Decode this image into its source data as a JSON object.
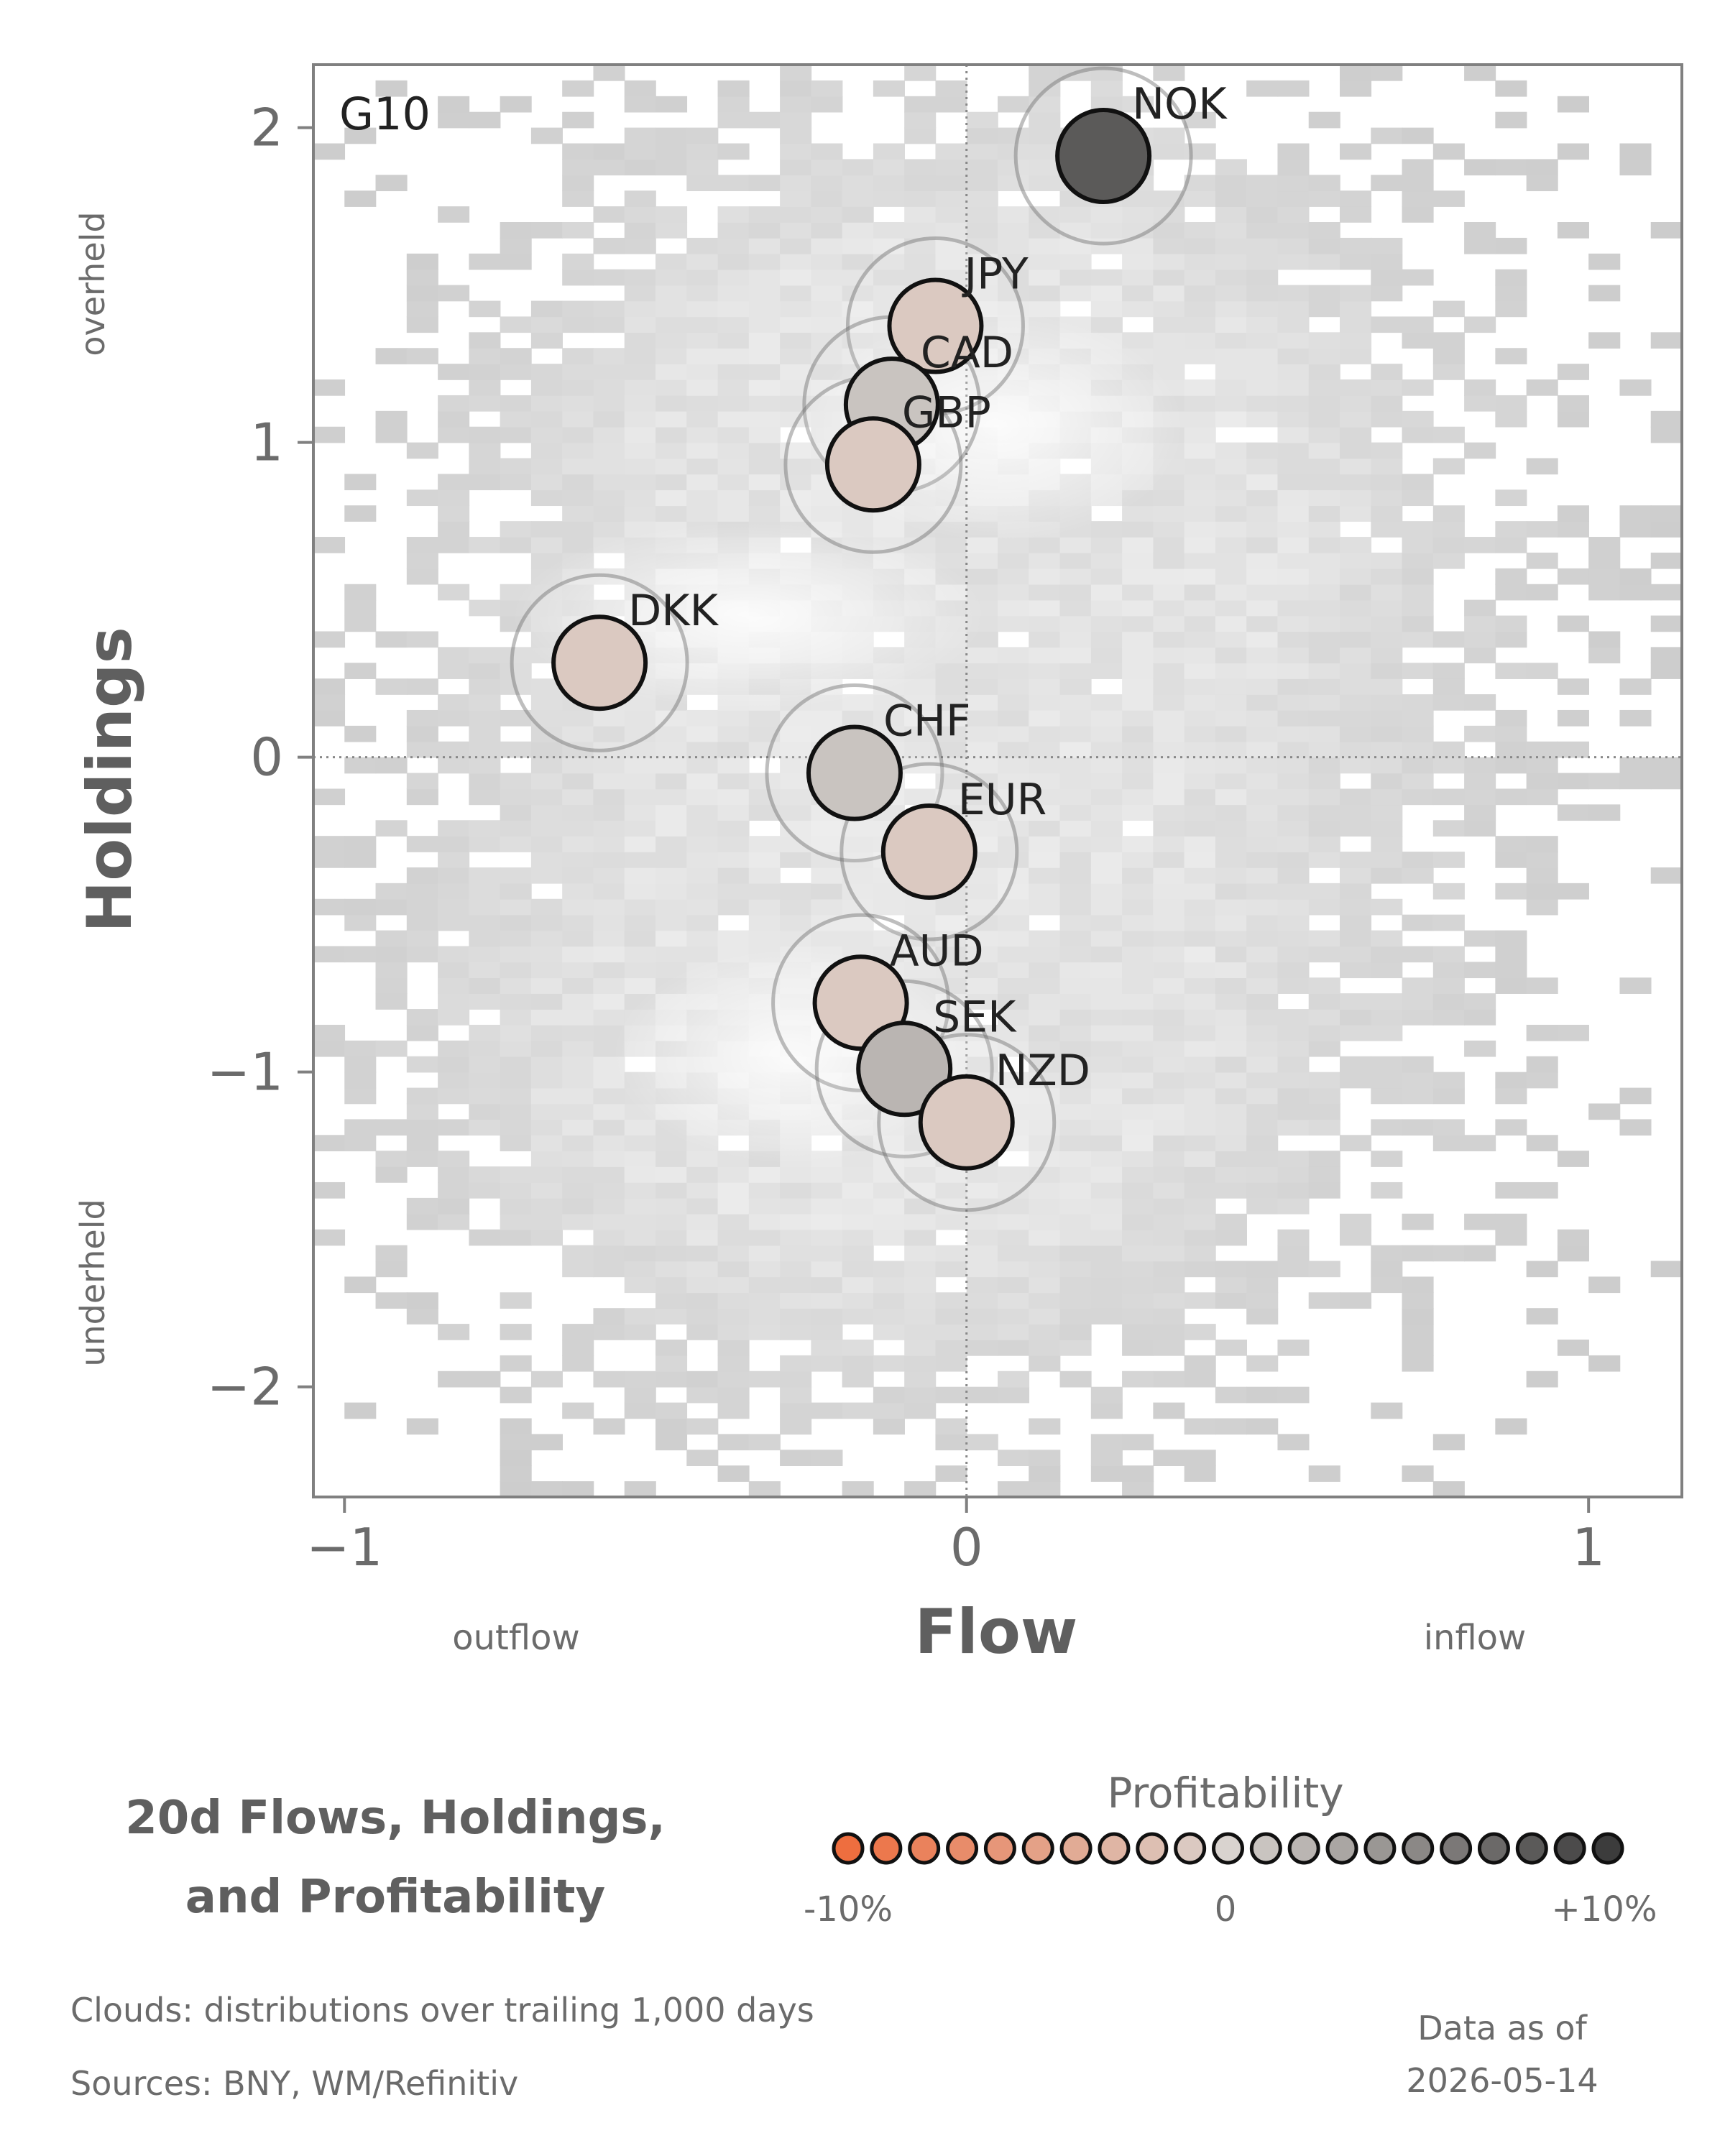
{
  "chart_data": {
    "type": "scatter",
    "panel_label": "G10",
    "xlabel": "Flow",
    "ylabel": "Holdings",
    "x_left_label": "outflow",
    "x_right_label": "inflow",
    "y_top_label": "overheld",
    "y_bottom_label": "underheld",
    "xlim": [
      -1.05,
      1.15
    ],
    "ylim": [
      -2.35,
      2.2
    ],
    "xticks": [
      {
        "value": -1,
        "label": "−1"
      },
      {
        "value": 0,
        "label": "0"
      },
      {
        "value": 1,
        "label": "1"
      }
    ],
    "yticks": [
      {
        "value": 2,
        "label": "2"
      },
      {
        "value": 1,
        "label": "1"
      },
      {
        "value": 0,
        "label": "0"
      },
      {
        "value": -1,
        "label": "−1"
      },
      {
        "value": -2,
        "label": "−2"
      }
    ],
    "grid": false,
    "reference_lines": {
      "x": 0,
      "y": 0
    },
    "background": "2D histogram clouds (grey)",
    "points": [
      {
        "label": "NOK",
        "x": 0.22,
        "y": 1.91,
        "profit": 8
      },
      {
        "label": "JPY",
        "x": -0.05,
        "y": 1.37,
        "profit": -1
      },
      {
        "label": "CAD",
        "x": -0.12,
        "y": 1.12,
        "profit": 1
      },
      {
        "label": "GBP",
        "x": -0.15,
        "y": 0.93,
        "profit": -1
      },
      {
        "label": "DKK",
        "x": -0.59,
        "y": 0.3,
        "profit": -1
      },
      {
        "label": "CHF",
        "x": -0.18,
        "y": -0.05,
        "profit": 1
      },
      {
        "label": "EUR",
        "x": -0.06,
        "y": -0.3,
        "profit": -1
      },
      {
        "label": "AUD",
        "x": -0.17,
        "y": -0.78,
        "profit": -1
      },
      {
        "label": "SEK",
        "x": -0.1,
        "y": -0.99,
        "profit": 2
      },
      {
        "label": "NZD",
        "x": 0.0,
        "y": -1.16,
        "profit": -1
      }
    ]
  },
  "title_line1": "20d Flows, Holdings,",
  "title_line2": "and Profitability",
  "legend": {
    "title": "Profitability",
    "min_label": "-10%",
    "mid_label": "0",
    "max_label": "+10%",
    "colors": {
      "negative": "#ee6e3f",
      "neutral": "#d9d3cf",
      "positive": "#3c3c3c"
    }
  },
  "footer": {
    "clouds": "Clouds:  distributions over trailing 1,000 days",
    "sources": "Sources:  BNY, WM/Refinitiv"
  },
  "asof": {
    "line1": "Data as of",
    "line2": "2026-05-14"
  }
}
